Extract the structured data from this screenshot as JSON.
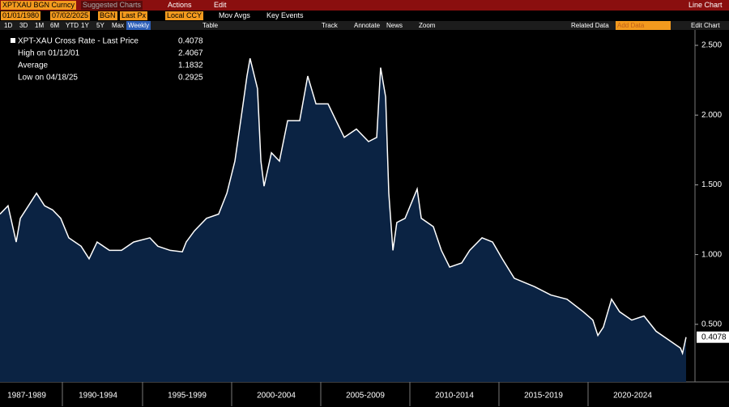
{
  "toolbar": {
    "security": "XPTXAU BGN Curncy",
    "suggested": "Suggested Charts",
    "actions": "Actions",
    "edit": "Edit",
    "chart_kind": "Line Chart",
    "start_date": "01/01/1980",
    "end_date": "07/02/2025",
    "source": "BGN",
    "field": "Last Px",
    "currency": "Local CCY",
    "mov_avgs": "Mov Avgs",
    "key_events": "Key Events",
    "periods": [
      "1D",
      "3D",
      "1M",
      "6M",
      "YTD",
      "1Y",
      "5Y",
      "Max"
    ],
    "frequency": "Weekly",
    "table": "Table",
    "tools": [
      "Track",
      "Annotate",
      "News",
      "Zoom"
    ],
    "related_data": "Related Data",
    "add_data": "Add Data",
    "edit_chart": "Edit Chart"
  },
  "chart_data": {
    "type": "line",
    "x": [
      1987.0,
      1987.45,
      1987.91,
      1988.14,
      1989.05,
      1989.5,
      1989.95,
      1990.41,
      1990.86,
      1991.55,
      1992.0,
      1992.45,
      1993.14,
      1993.82,
      1994.5,
      1995.41,
      1995.86,
      1996.55,
      1997.23,
      1997.45,
      1997.91,
      1998.59,
      1999.27,
      1999.73,
      2000.18,
      2000.64,
      2000.86,
      2001.03,
      2001.45,
      2001.64,
      2001.82,
      2002.23,
      2002.68,
      2003.14,
      2003.82,
      2004.27,
      2004.73,
      2005.41,
      2005.86,
      2006.32,
      2007.0,
      2007.68,
      2008.14,
      2008.36,
      2008.64,
      2008.82,
      2009.05,
      2009.27,
      2009.73,
      2010.41,
      2010.64,
      2011.32,
      2011.77,
      2012.23,
      2012.91,
      2013.36,
      2014.05,
      2014.64,
      2015.18,
      2015.86,
      2017.0,
      2017.91,
      2018.82,
      2019.73,
      2020.27,
      2020.55,
      2020.86,
      2021.32,
      2021.77,
      2022.45,
      2023.14,
      2023.82,
      2024.5,
      2025.18,
      2025.3,
      2025.5
    ],
    "series": [
      {
        "name": "XPT-XAU Cross Rate - Last Price",
        "color": "#ffffff",
        "fill": "#0b2343",
        "values": [
          1.29,
          1.35,
          1.09,
          1.26,
          1.44,
          1.35,
          1.32,
          1.26,
          1.12,
          1.06,
          0.97,
          1.09,
          1.03,
          1.03,
          1.09,
          1.12,
          1.06,
          1.03,
          1.02,
          1.09,
          1.17,
          1.26,
          1.29,
          1.44,
          1.67,
          2.08,
          2.28,
          2.4067,
          2.19,
          1.67,
          1.49,
          1.73,
          1.67,
          1.96,
          1.96,
          2.28,
          2.08,
          2.08,
          1.96,
          1.84,
          1.9,
          1.81,
          1.84,
          2.34,
          2.13,
          1.44,
          1.03,
          1.23,
          1.26,
          1.47,
          1.26,
          1.2,
          1.03,
          0.91,
          0.94,
          1.03,
          1.12,
          1.09,
          0.97,
          0.83,
          0.77,
          0.71,
          0.68,
          0.59,
          0.53,
          0.42,
          0.48,
          0.68,
          0.59,
          0.53,
          0.56,
          0.45,
          0.39,
          0.33,
          0.2925,
          0.4078
        ]
      }
    ],
    "stats": [
      {
        "label": "High on 01/12/01",
        "value": 2.4067
      },
      {
        "label": "Average",
        "value": 1.1832
      },
      {
        "label": "Low on 04/18/25",
        "value": 0.2925
      }
    ],
    "xlim": [
      1987,
      2026
    ],
    "xticks": [
      {
        "value": 1988.5,
        "label": "1987-1989"
      },
      {
        "value": 1992.5,
        "label": "1990-1994"
      },
      {
        "value": 1997.5,
        "label": "1995-1999"
      },
      {
        "value": 2002.5,
        "label": "2000-2004"
      },
      {
        "value": 2007.5,
        "label": "2005-2009"
      },
      {
        "value": 2012.5,
        "label": "2010-2014"
      },
      {
        "value": 2017.5,
        "label": "2015-2019"
      },
      {
        "value": 2022.5,
        "label": "2020-2024"
      }
    ],
    "ylim": [
      0.087,
      2.593
    ],
    "yticks": [
      {
        "value": 0.5,
        "label": "0.500"
      },
      {
        "value": 1,
        "label": "1.000"
      },
      {
        "value": 1.5,
        "label": "1.500"
      },
      {
        "value": 2,
        "label": "2.000"
      },
      {
        "value": 2.5,
        "label": "2.500"
      }
    ],
    "grid": false
  }
}
